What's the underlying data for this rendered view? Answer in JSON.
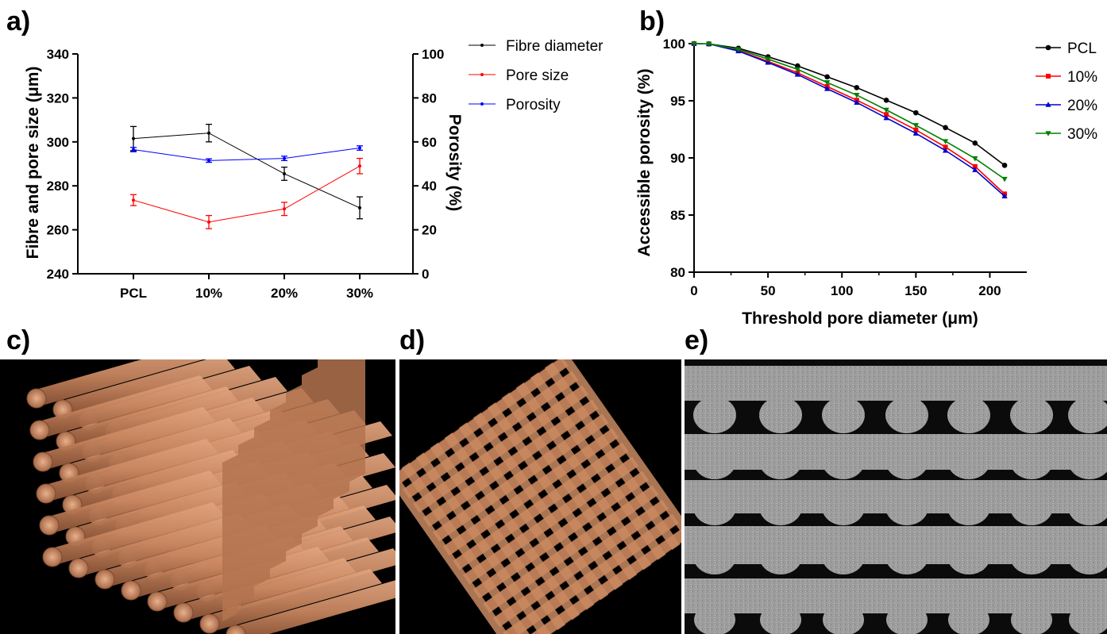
{
  "panels": {
    "a": "a)",
    "b": "b)",
    "c": "c)",
    "d": "d)",
    "e": "e)"
  },
  "chart_data": [
    {
      "type": "line",
      "panel": "a",
      "categories": [
        "PCL",
        "10%",
        "20%",
        "30%"
      ],
      "ylabel": "Fibre and pore size (μm)",
      "ylim": [
        240,
        340
      ],
      "yticks": [
        "240",
        "260",
        "280",
        "300",
        "320",
        "340"
      ],
      "y2label": "Porosity (%)",
      "y2lim": [
        0,
        100
      ],
      "y2ticks": [
        "0",
        "20",
        "40",
        "60",
        "80",
        "100"
      ],
      "legend_position": "right",
      "series": [
        {
          "name": "Fibre diameter",
          "axis": "left",
          "color": "#000000",
          "values": [
            301.5,
            304,
            285.5,
            270
          ],
          "errors": [
            5.5,
            4,
            3,
            5
          ]
        },
        {
          "name": "Pore size",
          "axis": "left",
          "color": "#ff0000",
          "values": [
            273.5,
            263.5,
            269.5,
            289
          ],
          "errors": [
            2.5,
            3,
            3,
            3.5
          ]
        },
        {
          "name": "Porosity",
          "axis": "right",
          "color": "#0000ff",
          "values": [
            56.5,
            51.5,
            52.5,
            57.2
          ],
          "errors": [
            1,
            0.8,
            1,
            1
          ]
        }
      ]
    },
    {
      "type": "line",
      "panel": "b",
      "xlabel": "Threshold pore diameter (μm)",
      "ylabel": "Accessible porosity (%)",
      "xlim": [
        0,
        225
      ],
      "ylim": [
        80,
        100
      ],
      "xticks": [
        "0",
        "50",
        "100",
        "150",
        "200"
      ],
      "yticks": [
        "80",
        "85",
        "90",
        "95",
        "100"
      ],
      "legend_position": "top-right",
      "x": [
        0,
        10,
        30,
        50,
        70,
        90,
        110,
        130,
        150,
        170,
        190,
        210
      ],
      "series": [
        {
          "name": "PCL",
          "marker": "circle",
          "color": "#000000",
          "values": [
            100,
            99.98,
            99.6,
            98.85,
            98.05,
            97.1,
            96.15,
            95.05,
            93.95,
            92.65,
            91.3,
            89.35
          ]
        },
        {
          "name": "10%",
          "marker": "square",
          "color": "#ff0000",
          "values": [
            100,
            99.98,
            99.4,
            98.45,
            97.45,
            96.25,
            95.05,
            93.8,
            92.45,
            90.95,
            89.25,
            86.85
          ]
        },
        {
          "name": "20%",
          "marker": "triangle-up",
          "color": "#0000cc",
          "values": [
            100,
            99.98,
            99.35,
            98.35,
            97.3,
            96.05,
            94.85,
            93.5,
            92.15,
            90.65,
            88.95,
            86.65
          ]
        },
        {
          "name": "30%",
          "marker": "triangle-down",
          "color": "#008000",
          "values": [
            100,
            99.98,
            99.5,
            98.65,
            97.75,
            96.6,
            95.5,
            94.2,
            92.85,
            91.45,
            89.95,
            88.15
          ]
        }
      ]
    }
  ],
  "images": {
    "c": {
      "description_icon": "micro-ct-3d-render-side"
    },
    "d": {
      "description_icon": "micro-ct-3d-render-top"
    },
    "e": {
      "description_icon": "micro-ct-cross-section"
    }
  }
}
